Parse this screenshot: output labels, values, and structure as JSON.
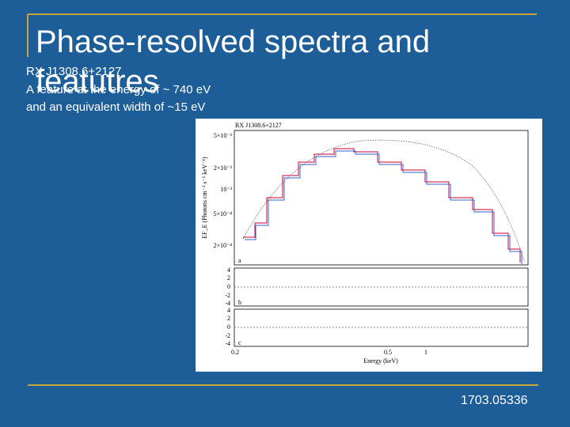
{
  "slide": {
    "title": "Phase-resolved spectra and featutres",
    "body": [
      "RX J1308.6+2127",
      "A feature at the energy of ~ 740 eV",
      "and an equivalent width of ~15 eV"
    ],
    "figure": {
      "title": "RX J1308.6+2127",
      "y_label": "EF_E (Photons cm⁻² s⁻¹ keV⁻¹)",
      "y_ticks": [
        "5×10⁻³",
        "2×10⁻³",
        "10⁻³",
        "5×10⁻⁴",
        "2×10⁻⁴"
      ],
      "panels": [
        "a",
        "b",
        "c"
      ],
      "residual_ticks": [
        "4",
        "2",
        "0",
        "-2",
        "-4"
      ],
      "x_ticks": [
        "0.2",
        "0.5",
        "1"
      ],
      "x_label": "Energy (keV)"
    },
    "footer": "1703.05336"
  }
}
